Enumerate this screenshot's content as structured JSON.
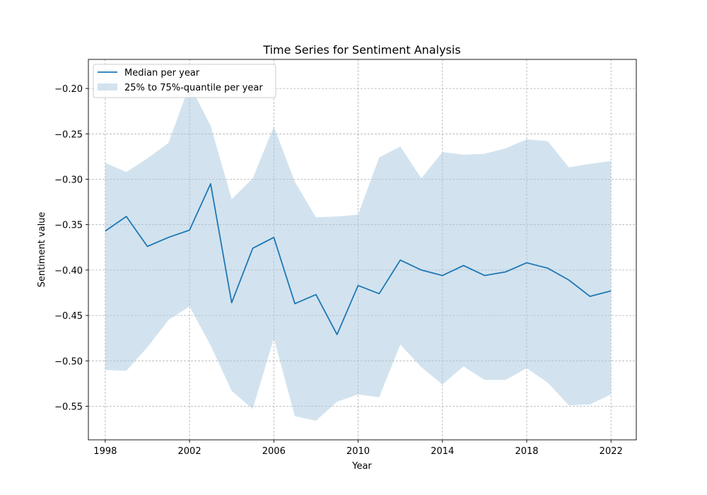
{
  "chart_data": {
    "type": "line",
    "title": "Time Series for Sentiment Analysis",
    "xlabel": "Year",
    "ylabel": "Sentiment value",
    "xlim": [
      1997.2,
      2023.2
    ],
    "ylim": [
      -0.587,
      -0.168
    ],
    "xticks": [
      1998,
      2002,
      2006,
      2010,
      2014,
      2018,
      2022
    ],
    "yticks": [
      -0.55,
      -0.5,
      -0.45,
      -0.4,
      -0.35,
      -0.3,
      -0.25,
      -0.2
    ],
    "ytick_labels": [
      "−0.55",
      "−0.50",
      "−0.45",
      "−0.40",
      "−0.35",
      "−0.30",
      "−0.25",
      "−0.20"
    ],
    "grid": true,
    "legend_position": "top-left",
    "x": [
      1998,
      1999,
      2000,
      2001,
      2002,
      2003,
      2004,
      2005,
      2006,
      2007,
      2008,
      2009,
      2010,
      2011,
      2012,
      2013,
      2014,
      2015,
      2016,
      2017,
      2018,
      2019,
      2020,
      2021,
      2022
    ],
    "series": [
      {
        "name": "Median per year",
        "kind": "line",
        "color": "#1f77b4",
        "values": [
          -0.357,
          -0.341,
          -0.374,
          -0.364,
          -0.356,
          -0.305,
          -0.436,
          -0.376,
          -0.364,
          -0.437,
          -0.427,
          -0.471,
          -0.417,
          -0.426,
          -0.389,
          -0.4,
          -0.406,
          -0.395,
          -0.406,
          -0.402,
          -0.392,
          -0.398,
          -0.411,
          -0.429,
          -0.423
        ]
      },
      {
        "name": "25% to 75%-quantile per year",
        "kind": "band",
        "color": "#a6c8e0",
        "lower": [
          -0.51,
          -0.511,
          -0.485,
          -0.455,
          -0.44,
          -0.483,
          -0.533,
          -0.553,
          -0.475,
          -0.561,
          -0.566,
          -0.545,
          -0.537,
          -0.54,
          -0.482,
          -0.507,
          -0.526,
          -0.506,
          -0.521,
          -0.521,
          -0.508,
          -0.524,
          -0.549,
          -0.548,
          -0.537
        ],
        "upper": [
          -0.282,
          -0.292,
          -0.277,
          -0.26,
          -0.196,
          -0.241,
          -0.322,
          -0.299,
          -0.242,
          -0.303,
          -0.342,
          -0.341,
          -0.339,
          -0.276,
          -0.264,
          -0.299,
          -0.27,
          -0.273,
          -0.272,
          -0.266,
          -0.256,
          -0.258,
          -0.287,
          -0.283,
          -0.28
        ]
      }
    ]
  }
}
